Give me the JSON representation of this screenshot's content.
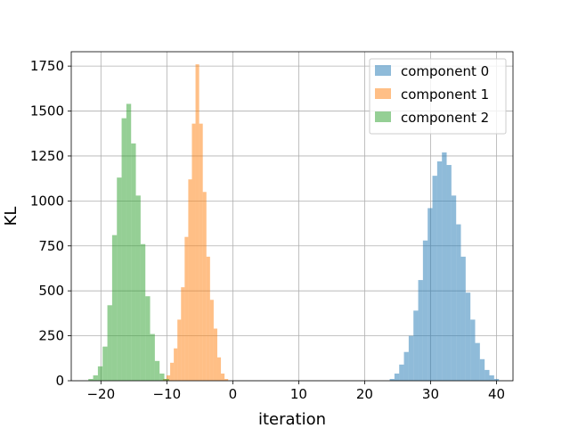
{
  "chart_data": {
    "type": "histogram",
    "title": "",
    "xlabel": "iteration",
    "ylabel": "KL",
    "xlim": [
      -24.5,
      42.5
    ],
    "ylim": [
      0,
      1830
    ],
    "xticks": [
      -20,
      -10,
      0,
      10,
      20,
      30,
      40
    ],
    "yticks": [
      0,
      250,
      500,
      750,
      1000,
      1250,
      1500,
      1750
    ],
    "grid": true,
    "legend_position": "top-right",
    "legend": [
      "component 0",
      "component 1",
      "component 2"
    ],
    "series": [
      {
        "name": "component 0",
        "color": "#1f77b4",
        "alpha": 0.5,
        "bin_start": 23.8,
        "bin_width": 0.72,
        "counts": [
          10,
          40,
          90,
          160,
          250,
          390,
          560,
          780,
          960,
          1140,
          1220,
          1270,
          1200,
          1030,
          870,
          690,
          490,
          340,
          210,
          120,
          60,
          30,
          10
        ]
      },
      {
        "name": "component 1",
        "color": "#ff7f0e",
        "alpha": 0.5,
        "bin_start": -10.6,
        "bin_width": 0.55,
        "counts": [
          10,
          30,
          100,
          180,
          340,
          520,
          800,
          1120,
          1430,
          1760,
          1430,
          1050,
          690,
          450,
          290,
          130,
          40,
          10
        ]
      },
      {
        "name": "component 2",
        "color": "#2ca02c",
        "alpha": 0.5,
        "bin_start": -21.9,
        "bin_width": 0.72,
        "counts": [
          10,
          30,
          80,
          190,
          420,
          810,
          1130,
          1460,
          1540,
          1320,
          1030,
          760,
          470,
          260,
          110,
          40,
          10
        ]
      }
    ]
  }
}
